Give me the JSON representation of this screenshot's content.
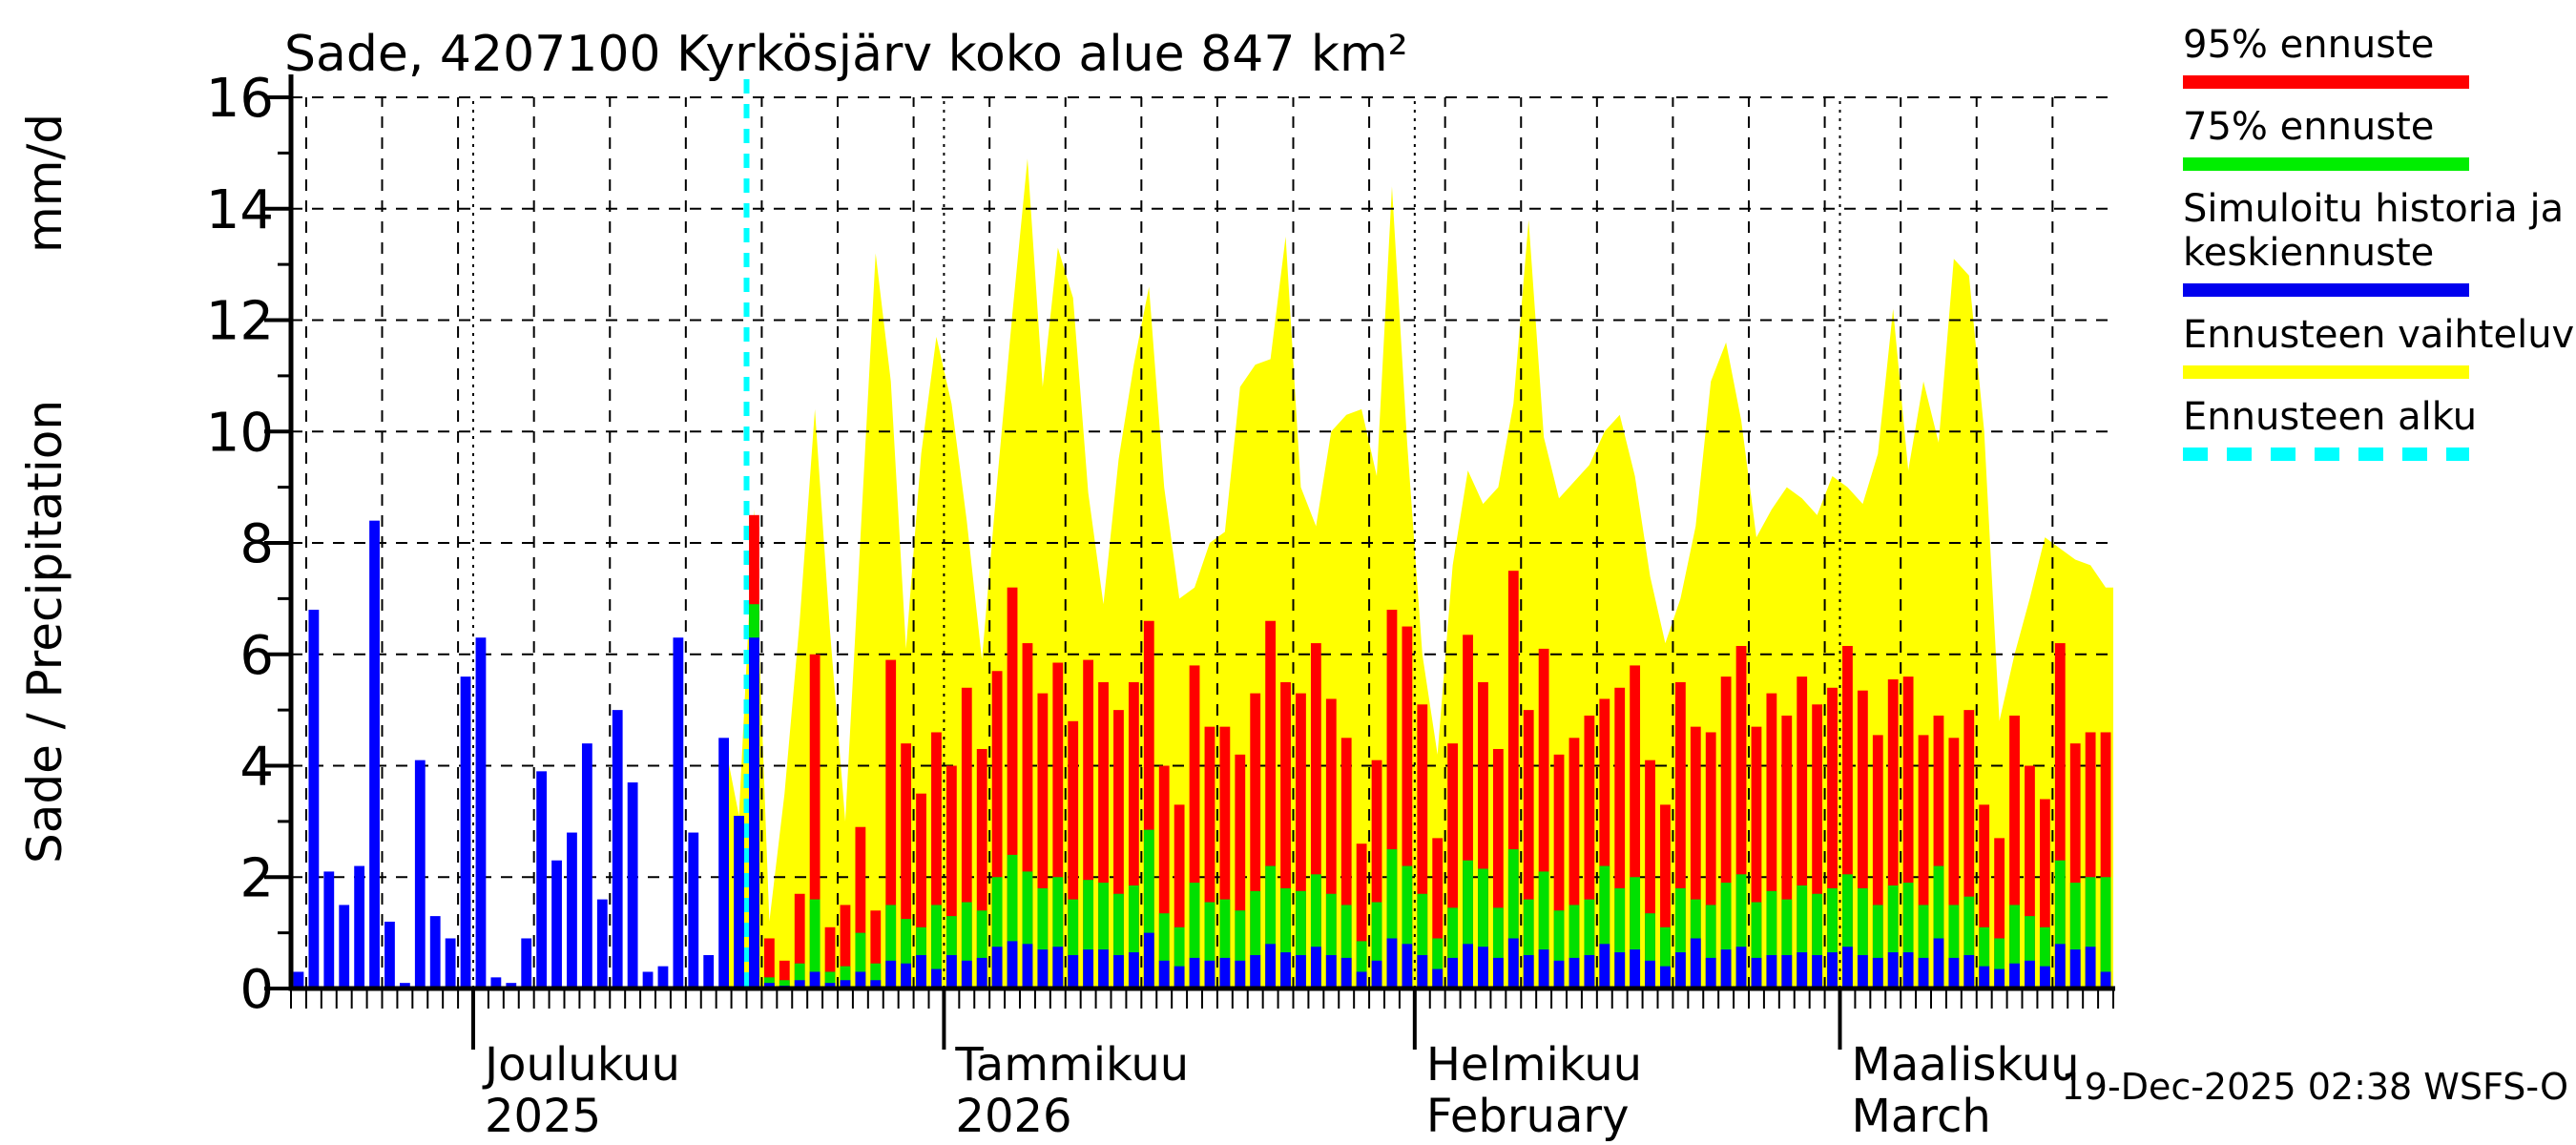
{
  "title": "Sade, 4207100 Kyrkösjärv koko alue 847 km²",
  "timestamp": "19-Dec-2025 02:38 WSFS-O",
  "y_axis": {
    "label_main": "Sade / Precipitation",
    "label_unit": "mm/d",
    "min": 0,
    "max": 16,
    "tick_step": 2,
    "tick_labels": [
      "0",
      "2",
      "4",
      "6",
      "8",
      "10",
      "12",
      "14",
      "16"
    ]
  },
  "x_axis": {
    "months": [
      {
        "label": "Joulukuu",
        "sublabel": "2025",
        "day_index": 12
      },
      {
        "label": "Tammikuu",
        "sublabel": "2026",
        "day_index": 43
      },
      {
        "label": "Helmikuu",
        "sublabel": "February",
        "day_index": 74
      },
      {
        "label": "Maaliskuu",
        "sublabel": "March",
        "day_index": 102
      }
    ],
    "total_days": 120,
    "minor_tick_every_days": 1,
    "grid_every_days": 5,
    "grid_start_index": 1
  },
  "legend": {
    "items": [
      {
        "label": "95% ennuste",
        "color": "#ff0000",
        "style": "solid"
      },
      {
        "label": "75% ennuste",
        "color": "#00ee00",
        "style": "solid"
      },
      {
        "label": "Simuloitu historia ja",
        "label2": "keskiennuste",
        "color": "#0000ee",
        "style": "solid"
      },
      {
        "label": "Ennusteen vaihteluväli",
        "color": "#ffff00",
        "style": "solid"
      },
      {
        "label": "Ennusteen alku",
        "color": "#00ffff",
        "style": "dashed"
      }
    ]
  },
  "colors": {
    "history_bar": "#0000ff",
    "forecast_95": "#ff0000",
    "forecast_75": "#00e000",
    "forecast_median": "#0000ff",
    "forecast_range": "#ffff00",
    "forecast_start_line": "#00ffff",
    "axis": "#000000",
    "grid": "#000000",
    "background": "#ffffff"
  },
  "chart_data": {
    "type": "bar",
    "subtype": "precipitation history + ensemble forecast with range envelope",
    "title": "Sade, 4207100 Kyrkösjärv koko alue 847 km²",
    "xlabel": "",
    "ylabel": "Sade / Precipitation  mm/d",
    "ylim": [
      0,
      16
    ],
    "grid": true,
    "legend_position": "right-outside",
    "total_days": 120,
    "forecast_start_index": 30,
    "history": {
      "name": "Simuloitu historia ja keskiennuste",
      "values": [
        0.3,
        6.8,
        2.1,
        1.5,
        2.2,
        8.4,
        1.2,
        0.1,
        4.1,
        1.3,
        0.9,
        5.6,
        6.3,
        0.2,
        0.1,
        0.9,
        3.9,
        2.3,
        2.8,
        4.4,
        1.6,
        5.0,
        3.7,
        0.3,
        0.4,
        6.3,
        2.8,
        0.6,
        4.5,
        3.1
      ]
    },
    "forecast": {
      "series": [
        {
          "name": "95% ennuste",
          "values": [
            8.5,
            0.9,
            0.5,
            1.7,
            6.0,
            1.1,
            1.5,
            2.9,
            1.4,
            5.9,
            4.4,
            3.5,
            4.6,
            4.0,
            5.4,
            4.3,
            5.7,
            7.2,
            6.2,
            5.3,
            5.85,
            4.8,
            5.9,
            5.5,
            5.0,
            5.5,
            6.6,
            4.0,
            3.3,
            5.8,
            4.7,
            4.7,
            4.2,
            5.3,
            6.6,
            5.5,
            5.3,
            6.2,
            5.2,
            4.5,
            2.6,
            4.1,
            6.8,
            6.5,
            5.1,
            2.7,
            4.4,
            6.35,
            5.5,
            4.3,
            7.5,
            5.0,
            6.1,
            4.2,
            4.5,
            4.9,
            5.2,
            5.4,
            5.8,
            4.1,
            3.3,
            5.5,
            4.7,
            4.6,
            5.6,
            6.15,
            4.7,
            5.3,
            4.9,
            5.6,
            5.1,
            5.4,
            6.15,
            5.35,
            4.55,
            5.55,
            5.6,
            4.55,
            4.9,
            4.5,
            5.0,
            3.3,
            2.7,
            4.9,
            4.0,
            3.4,
            6.2,
            4.4,
            4.6,
            4.6
          ]
        },
        {
          "name": "75% ennuste",
          "values": [
            6.9,
            0.2,
            0.15,
            0.45,
            1.6,
            0.3,
            0.4,
            1.0,
            0.45,
            1.5,
            1.25,
            1.1,
            1.5,
            1.3,
            1.55,
            1.4,
            2.0,
            2.4,
            2.1,
            1.8,
            2.0,
            1.6,
            1.95,
            1.9,
            1.7,
            1.85,
            2.85,
            1.35,
            1.1,
            1.9,
            1.55,
            1.6,
            1.4,
            1.75,
            2.2,
            1.8,
            1.75,
            2.05,
            1.7,
            1.5,
            0.85,
            1.55,
            2.5,
            2.2,
            1.7,
            0.9,
            1.45,
            2.3,
            2.15,
            1.45,
            2.5,
            1.6,
            2.1,
            1.4,
            1.5,
            1.6,
            2.2,
            1.8,
            2.0,
            1.35,
            1.1,
            1.8,
            1.6,
            1.5,
            1.9,
            2.05,
            1.55,
            1.75,
            1.6,
            1.85,
            1.7,
            1.8,
            2.05,
            1.8,
            1.5,
            1.85,
            1.9,
            1.5,
            2.2,
            1.5,
            1.65,
            1.1,
            0.9,
            1.5,
            1.3,
            1.1,
            2.3,
            1.9,
            2.0,
            2.0
          ]
        },
        {
          "name": "Keskiennuste (mediaani)",
          "values": [
            6.3,
            0.1,
            0.05,
            0.15,
            0.3,
            0.1,
            0.15,
            0.3,
            0.15,
            0.5,
            0.45,
            0.6,
            0.35,
            0.6,
            0.5,
            0.55,
            0.75,
            0.85,
            0.8,
            0.7,
            0.75,
            0.6,
            0.7,
            0.7,
            0.6,
            0.65,
            1.0,
            0.5,
            0.4,
            0.55,
            0.5,
            0.55,
            0.5,
            0.6,
            0.8,
            0.65,
            0.6,
            0.75,
            0.6,
            0.55,
            0.3,
            0.5,
            0.9,
            0.8,
            0.6,
            0.35,
            0.55,
            0.8,
            0.75,
            0.55,
            0.9,
            0.6,
            0.7,
            0.5,
            0.55,
            0.6,
            0.8,
            0.65,
            0.7,
            0.5,
            0.4,
            0.65,
            0.9,
            0.55,
            0.7,
            0.75,
            0.55,
            0.6,
            0.6,
            0.65,
            0.6,
            0.65,
            0.75,
            0.6,
            0.55,
            0.65,
            0.65,
            0.55,
            0.9,
            0.55,
            0.6,
            0.4,
            0.35,
            0.45,
            0.5,
            0.4,
            0.8,
            0.7,
            0.75,
            0.3
          ]
        }
      ],
      "envelope": {
        "name": "Ennusteen vaihteluväli",
        "lead_in_history_indices": [
          28,
          29
        ],
        "lead_in_values": [
          4.5,
          3.1
        ],
        "max_values": [
          8.6,
          1.2,
          3.5,
          6.6,
          10.4,
          6.4,
          3.0,
          8.1,
          13.2,
          10.9,
          6.1,
          9.6,
          11.7,
          10.5,
          8.4,
          5.9,
          9.1,
          12.1,
          14.9,
          10.8,
          13.3,
          12.4,
          8.9,
          6.9,
          9.5,
          11.2,
          12.6,
          9.0,
          7.0,
          7.2,
          8.0,
          8.2,
          10.8,
          11.2,
          11.3,
          13.5,
          9.0,
          8.3,
          10.0,
          10.3,
          10.4,
          9.2,
          14.4,
          9.8,
          6.0,
          4.2,
          7.6,
          9.3,
          8.7,
          9.0,
          10.5,
          13.8,
          9.9,
          8.8,
          9.1,
          9.4,
          10.0,
          10.3,
          9.2,
          7.4,
          6.2,
          7.0,
          8.3,
          10.9,
          11.6,
          10.2,
          8.1,
          8.6,
          9.0,
          8.8,
          8.5,
          9.2,
          9.0,
          8.7,
          9.6,
          12.2,
          9.3,
          10.9,
          9.8,
          13.1,
          12.8,
          10.0,
          4.8,
          6.0,
          7.0,
          8.1,
          7.9,
          7.7,
          7.6,
          7.2
        ]
      }
    }
  }
}
